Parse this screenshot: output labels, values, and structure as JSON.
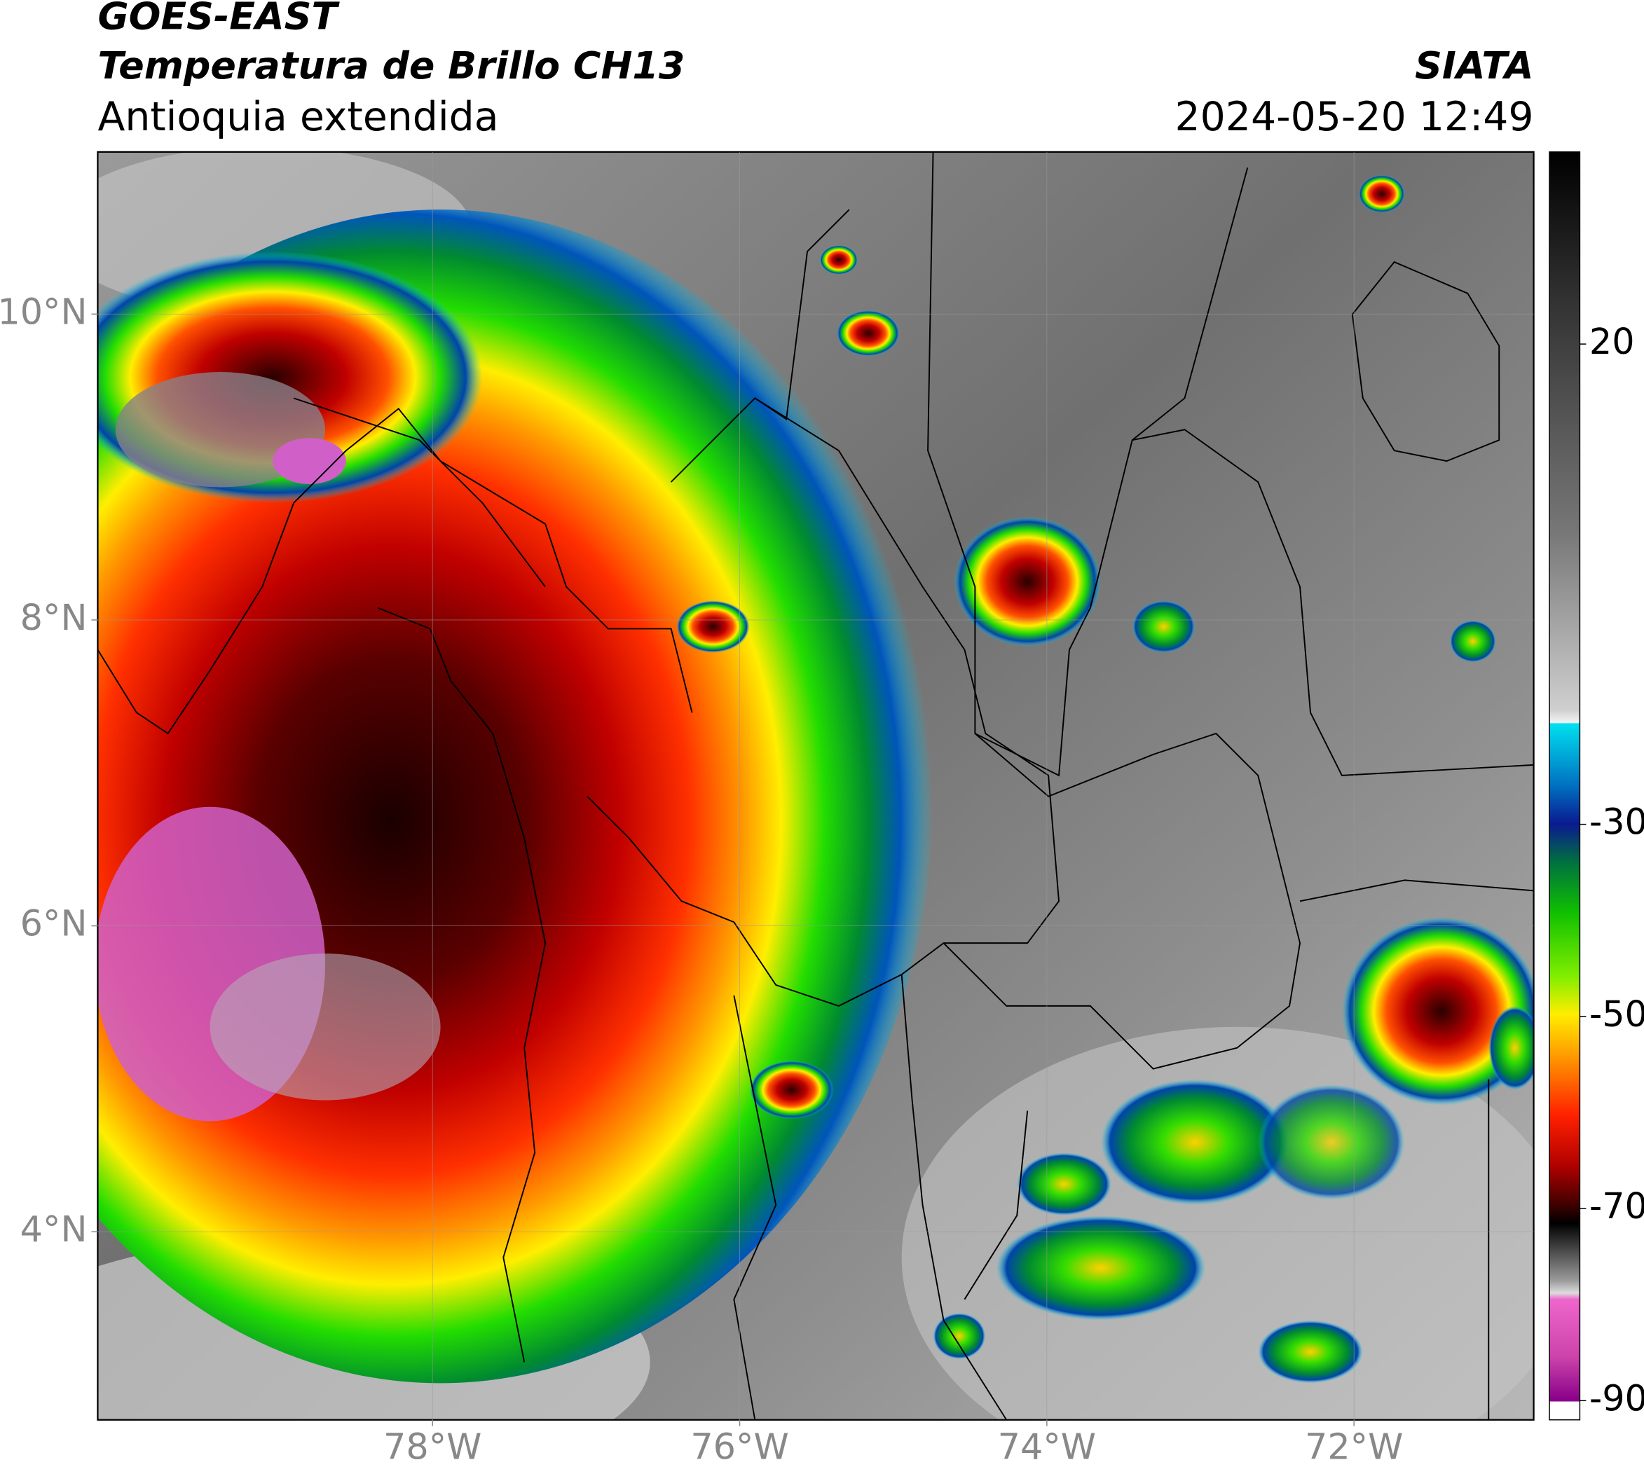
{
  "header": {
    "source": "GOES-EAST",
    "product": "Temperatura de Brillo CH13",
    "region": "Antioquia extendida",
    "agency": "SIATA",
    "datetime": "2024-05-20 12:49"
  },
  "map": {
    "lon_range": [
      -80.18,
      -70.83
    ],
    "lat_range": [
      2.77,
      11.06
    ],
    "lon_ticks": [
      {
        "value": -78,
        "label": "78°W"
      },
      {
        "value": -76,
        "label": "76°W"
      },
      {
        "value": -74,
        "label": "74°W"
      },
      {
        "value": -72,
        "label": "72°W"
      }
    ],
    "lat_ticks": [
      {
        "value": 10,
        "label": "10°N"
      },
      {
        "value": 8,
        "label": "8°N"
      },
      {
        "value": 6,
        "label": "6°N"
      },
      {
        "value": 4,
        "label": "4°N"
      }
    ],
    "grid": true
  },
  "colorbar": {
    "range": [
      -92,
      40
    ],
    "ticks": [
      20,
      -30,
      -50,
      -70,
      -90
    ]
  }
}
